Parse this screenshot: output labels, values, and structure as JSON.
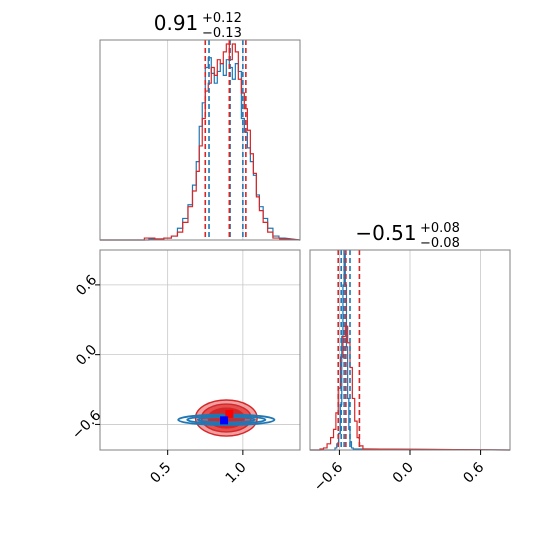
{
  "colors": {
    "series_a": "#1f77b4",
    "series_b": "#d62728",
    "marker_b": "#ff0000",
    "marker_a": "#0000ff",
    "grid": "#c8c8c8",
    "frame": "#808080"
  },
  "titles": {
    "param1": {
      "value": "0.91",
      "upper": "+0.12",
      "lower": "−0.13"
    },
    "param2": {
      "value": "−0.51",
      "upper": "+0.08",
      "lower": "−0.08"
    }
  },
  "chart_data": [
    {
      "id": "hist-param1",
      "type": "histogram",
      "xlim": [
        0.05,
        1.38
      ],
      "grid": true,
      "series": [
        {
          "color": "series_a",
          "bin_centers": [
            0.4,
            0.45,
            0.5,
            0.55,
            0.58,
            0.62,
            0.65,
            0.68,
            0.7,
            0.72,
            0.74,
            0.76,
            0.78,
            0.8,
            0.82,
            0.84,
            0.86,
            0.88,
            0.9,
            0.92,
            0.94,
            0.96,
            0.98,
            1.0,
            1.02,
            1.04,
            1.06,
            1.08,
            1.1,
            1.12,
            1.15,
            1.18,
            1.22,
            1.26
          ],
          "counts": [
            0.5,
            0.5,
            1,
            2,
            6,
            11,
            18,
            28,
            40,
            58,
            70,
            88,
            93,
            85,
            80,
            86,
            90,
            84,
            92,
            88,
            82,
            90,
            86,
            62,
            55,
            47,
            40,
            33,
            23,
            17,
            11,
            6,
            2,
            1
          ]
        },
        {
          "color": "series_b",
          "bin_centers": [
            0.38,
            0.45,
            0.5,
            0.55,
            0.58,
            0.62,
            0.65,
            0.68,
            0.7,
            0.72,
            0.74,
            0.76,
            0.78,
            0.8,
            0.82,
            0.84,
            0.86,
            0.88,
            0.9,
            0.92,
            0.94,
            0.96,
            0.98,
            1.0,
            1.02,
            1.04,
            1.06,
            1.08,
            1.1,
            1.12,
            1.15,
            1.18,
            1.22,
            1.27
          ],
          "counts": [
            1,
            0.5,
            1,
            2,
            4,
            9,
            17,
            25,
            35,
            48,
            62,
            76,
            80,
            88,
            84,
            92,
            90,
            96,
            100,
            92,
            100,
            96,
            82,
            75,
            67,
            56,
            44,
            34,
            22,
            15,
            9,
            4,
            1,
            0.5
          ]
        }
      ],
      "quantile_lines": [
        {
          "color": "series_a",
          "x": [
            0.775,
            0.915,
            1.0
          ]
        },
        {
          "color": "series_b",
          "x": [
            0.75,
            0.91,
            1.02
          ]
        }
      ]
    },
    {
      "id": "hist-param2",
      "type": "histogram",
      "xlim": [
        -0.85,
        0.85
      ],
      "grid": true,
      "xticks": [
        "−0.6",
        "0.0",
        "0.6"
      ],
      "xtick_values": [
        -0.6,
        0.0,
        0.6
      ],
      "series": [
        {
          "color": "series_a",
          "bin_centers": [
            -0.63,
            -0.615,
            -0.6,
            -0.585,
            -0.575,
            -0.565,
            -0.555,
            -0.545,
            -0.535,
            -0.525,
            -0.515,
            -0.505,
            -0.49,
            -0.475
          ],
          "counts": [
            1,
            3,
            8,
            22,
            55,
            80,
            95,
            80,
            50,
            25,
            10,
            4,
            1,
            0.5
          ]
        },
        {
          "color": "series_b",
          "bin_centers": [
            -0.75,
            -0.72,
            -0.69,
            -0.66,
            -0.64,
            -0.62,
            -0.6,
            -0.58,
            -0.56,
            -0.54,
            -0.52,
            -0.5,
            -0.48,
            -0.46,
            -0.44,
            -0.42,
            -0.38
          ],
          "counts": [
            0.5,
            1,
            3,
            6,
            10,
            18,
            30,
            45,
            55,
            60,
            52,
            40,
            25,
            14,
            6,
            2,
            0.5
          ]
        }
      ],
      "quantile_lines": [
        {
          "color": "series_a",
          "x": [
            -0.585,
            -0.56,
            -0.51
          ]
        },
        {
          "color": "series_b",
          "x": [
            -0.61,
            -0.545,
            -0.43
          ]
        }
      ]
    },
    {
      "id": "scatter-2d",
      "type": "contour",
      "xlim": [
        0.05,
        1.38
      ],
      "ylim": [
        -0.82,
        0.9
      ],
      "grid": true,
      "xticks": [
        "0.5",
        "1.0"
      ],
      "xtick_values": [
        0.5,
        1.0
      ],
      "yticks": [
        "0.6",
        "0.0",
        "−0.6"
      ],
      "ytick_values": [
        0.6,
        0.0,
        -0.6
      ],
      "series": [
        {
          "color": "series_b",
          "center": [
            0.89,
            -0.545
          ],
          "contours": [
            {
              "rx": 0.205,
              "ry": 0.155,
              "style": "fill-light"
            },
            {
              "rx": 0.165,
              "ry": 0.12,
              "style": "fill-mid"
            },
            {
              "rx": 0.12,
              "ry": 0.085,
              "style": "fill-dark"
            }
          ]
        },
        {
          "color": "series_a",
          "center": [
            0.89,
            -0.56
          ],
          "contours": [
            {
              "rx": 0.32,
              "ry": 0.045,
              "style": "line"
            },
            {
              "rx": 0.26,
              "ry": 0.032,
              "style": "line"
            },
            {
              "rx": 0.19,
              "ry": 0.022,
              "style": "line"
            }
          ]
        }
      ],
      "markers": [
        {
          "color": "marker_b",
          "x": 0.91,
          "y": -0.51
        },
        {
          "color": "marker_a",
          "x": 0.875,
          "y": -0.565
        }
      ]
    }
  ]
}
